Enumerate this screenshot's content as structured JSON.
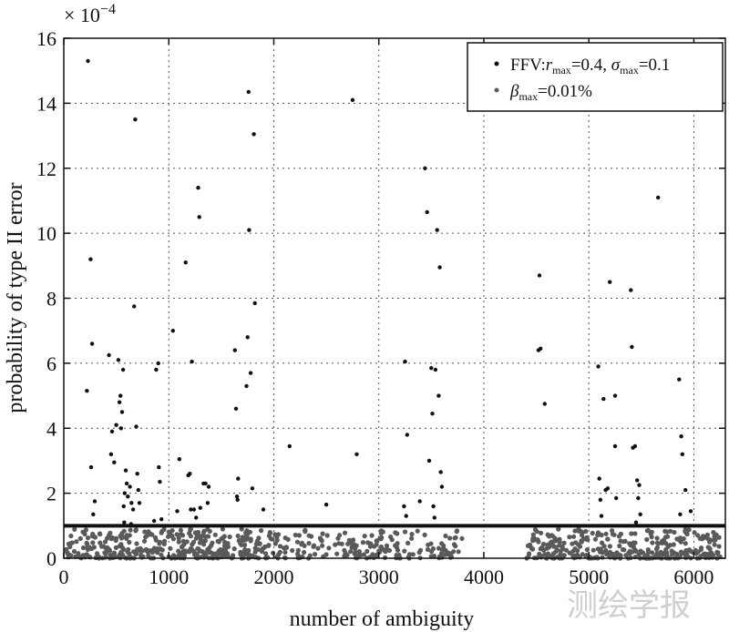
{
  "chart_data": {
    "type": "scatter",
    "xlabel": "number of ambiguity",
    "ylabel": "probability of type II error",
    "y_multiplier": "× 10",
    "y_multiplier_exp": "−4",
    "xlim": [
      0,
      6300
    ],
    "ylim": [
      0,
      16
    ],
    "x_ticks": [
      0,
      1000,
      2000,
      3000,
      4000,
      5000,
      6000
    ],
    "y_ticks": [
      0,
      2,
      4,
      6,
      8,
      10,
      12,
      14,
      16
    ],
    "x_tick_labels": [
      "0",
      "1000",
      "2000",
      "3000",
      "4000",
      "5000",
      "6000"
    ],
    "y_tick_labels": [
      "0",
      "2",
      "4",
      "6",
      "8",
      "10",
      "12",
      "14",
      "16"
    ],
    "grid": true,
    "legend_position": "top-right",
    "threshold_line": {
      "y": 1.0,
      "color": "#111111"
    },
    "series": [
      {
        "legend_prefix": "FFV:",
        "legend_r_symbol": "r",
        "legend_r_sub": "max",
        "legend_r_value": "=0.4, ",
        "legend_sigma_symbol": "σ",
        "legend_sigma_sub": "max",
        "legend_sigma_value": "=0.1",
        "color": "#111111",
        "points": [
          [
            230,
            15.3
          ],
          [
            255,
            9.2
          ],
          [
            270,
            6.6
          ],
          [
            220,
            5.15
          ],
          [
            260,
            2.8
          ],
          [
            295,
            1.75
          ],
          [
            280,
            1.35
          ],
          [
            430,
            6.25
          ],
          [
            460,
            3.9
          ],
          [
            450,
            3.2
          ],
          [
            480,
            2.95
          ],
          [
            520,
            6.1
          ],
          [
            530,
            4.8
          ],
          [
            540,
            5.0
          ],
          [
            555,
            4.5
          ],
          [
            565,
            5.8
          ],
          [
            500,
            4.1
          ],
          [
            545,
            4.0
          ],
          [
            590,
            2.7
          ],
          [
            600,
            2.3
          ],
          [
            610,
            1.9
          ],
          [
            570,
            1.6
          ],
          [
            575,
            1.1
          ],
          [
            630,
            2.2
          ],
          [
            645,
            1.7
          ],
          [
            660,
            1.5
          ],
          [
            680,
            13.5
          ],
          [
            670,
            7.75
          ],
          [
            690,
            4.05
          ],
          [
            700,
            2.6
          ],
          [
            710,
            2.1
          ],
          [
            720,
            1.7
          ],
          [
            640,
            1.05
          ],
          [
            580,
            2.0
          ],
          [
            880,
            5.8
          ],
          [
            900,
            6.0
          ],
          [
            905,
            2.8
          ],
          [
            915,
            2.35
          ],
          [
            860,
            1.15
          ],
          [
            930,
            1.2
          ],
          [
            1040,
            7.0
          ],
          [
            1100,
            3.05
          ],
          [
            1080,
            1.45
          ],
          [
            1160,
            9.1
          ],
          [
            1185,
            2.55
          ],
          [
            1200,
            2.6
          ],
          [
            1220,
            6.05
          ],
          [
            1210,
            1.5
          ],
          [
            1240,
            1.5
          ],
          [
            1260,
            1.25
          ],
          [
            1280,
            11.4
          ],
          [
            1290,
            10.5
          ],
          [
            1300,
            1.55
          ],
          [
            1330,
            2.3
          ],
          [
            1350,
            2.3
          ],
          [
            1380,
            2.2
          ],
          [
            1370,
            1.7
          ],
          [
            1630,
            6.4
          ],
          [
            1640,
            4.6
          ],
          [
            1650,
            1.9
          ],
          [
            1660,
            2.45
          ],
          [
            1655,
            1.8
          ],
          [
            1740,
            5.3
          ],
          [
            1750,
            6.8
          ],
          [
            1760,
            14.35
          ],
          [
            1765,
            10.1
          ],
          [
            1780,
            5.7
          ],
          [
            1795,
            2.15
          ],
          [
            1810,
            13.05
          ],
          [
            1820,
            7.85
          ],
          [
            1900,
            1.5
          ],
          [
            2150,
            3.45
          ],
          [
            2500,
            1.65
          ],
          [
            2750,
            14.1
          ],
          [
            2790,
            3.2
          ],
          [
            3250,
            6.05
          ],
          [
            3270,
            3.8
          ],
          [
            3240,
            1.6
          ],
          [
            3260,
            1.3
          ],
          [
            3390,
            1.75
          ],
          [
            3440,
            12.0
          ],
          [
            3460,
            10.65
          ],
          [
            3480,
            3.0
          ],
          [
            3500,
            5.85
          ],
          [
            3510,
            4.45
          ],
          [
            3520,
            1.6
          ],
          [
            3530,
            1.25
          ],
          [
            3540,
            5.8
          ],
          [
            3555,
            10.1
          ],
          [
            3570,
            5.0
          ],
          [
            3580,
            8.95
          ],
          [
            3590,
            2.65
          ],
          [
            3600,
            2.2
          ],
          [
            4520,
            6.4
          ],
          [
            4530,
            8.7
          ],
          [
            4540,
            6.45
          ],
          [
            4580,
            4.75
          ],
          [
            5090,
            5.9
          ],
          [
            5100,
            2.45
          ],
          [
            5110,
            1.8
          ],
          [
            5120,
            1.3
          ],
          [
            5140,
            4.9
          ],
          [
            5160,
            2.1
          ],
          [
            5180,
            2.15
          ],
          [
            5200,
            8.5
          ],
          [
            5250,
            5.0
          ],
          [
            5250,
            3.45
          ],
          [
            5260,
            1.85
          ],
          [
            5400,
            8.25
          ],
          [
            5410,
            6.5
          ],
          [
            5420,
            3.4
          ],
          [
            5440,
            3.45
          ],
          [
            5460,
            2.4
          ],
          [
            5470,
            1.85
          ],
          [
            5480,
            2.25
          ],
          [
            5490,
            1.35
          ],
          [
            5450,
            1.1
          ],
          [
            5660,
            11.1
          ],
          [
            5860,
            5.5
          ],
          [
            5880,
            3.75
          ],
          [
            5890,
            3.2
          ],
          [
            5920,
            2.1
          ],
          [
            5870,
            1.35
          ],
          [
            5970,
            1.45
          ]
        ]
      },
      {
        "legend_beta_symbol": "β",
        "legend_beta_sub": "max",
        "legend_beta_value": "=0.01%",
        "color": "#5a5a5a",
        "clusters": [
          {
            "x_range": [
              20,
              1900
            ],
            "count": 360
          },
          {
            "x_range": [
              1900,
              3800
            ],
            "count": 200
          },
          {
            "x_range": [
              4400,
              6250
            ],
            "count": 330
          }
        ],
        "y_range": [
          0,
          0.9
        ]
      }
    ]
  },
  "watermark": "测绘学报"
}
